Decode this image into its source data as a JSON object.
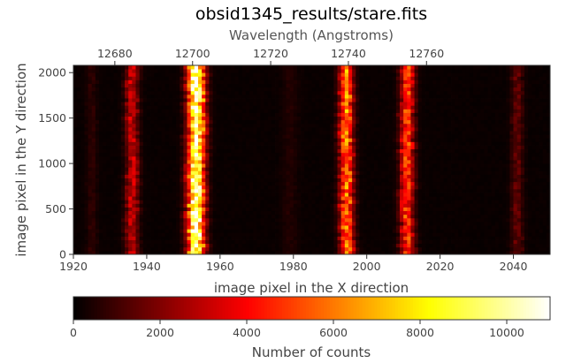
{
  "chart_data": {
    "type": "heatmap",
    "title": "obsid1345_results/stare.fits",
    "xlabel": "image pixel in the X direction",
    "ylabel": "image pixel in the Y direction",
    "top_xlabel": "Wavelength (Angstroms)",
    "xlim": [
      1920,
      2050
    ],
    "ylim": [
      0,
      2080
    ],
    "x_ticks": [
      1920,
      1940,
      1960,
      1980,
      2000,
      2020,
      2040
    ],
    "y_ticks": [
      0,
      500,
      1000,
      1500,
      2000
    ],
    "top_ticks": [
      {
        "label": "12680",
        "x": 1931.3
      },
      {
        "label": "12700",
        "x": 1952.5
      },
      {
        "label": "12720",
        "x": 1973.8
      },
      {
        "label": "12740",
        "x": 1995.0
      },
      {
        "label": "12760",
        "x": 2016.3
      }
    ],
    "colormap": "hot",
    "grid": false,
    "colorbar": {
      "label": "Number of counts",
      "range": [
        0,
        11000
      ],
      "ticks": [
        0,
        2000,
        4000,
        6000,
        8000,
        10000
      ]
    },
    "emission_lines": [
      {
        "center_x": 1953.5,
        "sigma_px": 1.6,
        "peak_counts": 11000
      },
      {
        "center_x": 1936.0,
        "sigma_px": 1.2,
        "peak_counts": 3300
      },
      {
        "center_x": 1994.5,
        "sigma_px": 1.3,
        "peak_counts": 6500
      },
      {
        "center_x": 2011.0,
        "sigma_px": 1.3,
        "peak_counts": 5200
      },
      {
        "center_x": 2041.0,
        "sigma_px": 1.1,
        "peak_counts": 1500
      },
      {
        "center_x": 1925.0,
        "sigma_px": 1.0,
        "peak_counts": 600
      },
      {
        "center_x": 1979.0,
        "sigma_px": 1.5,
        "peak_counts": 400
      }
    ],
    "background_counts": 150
  }
}
